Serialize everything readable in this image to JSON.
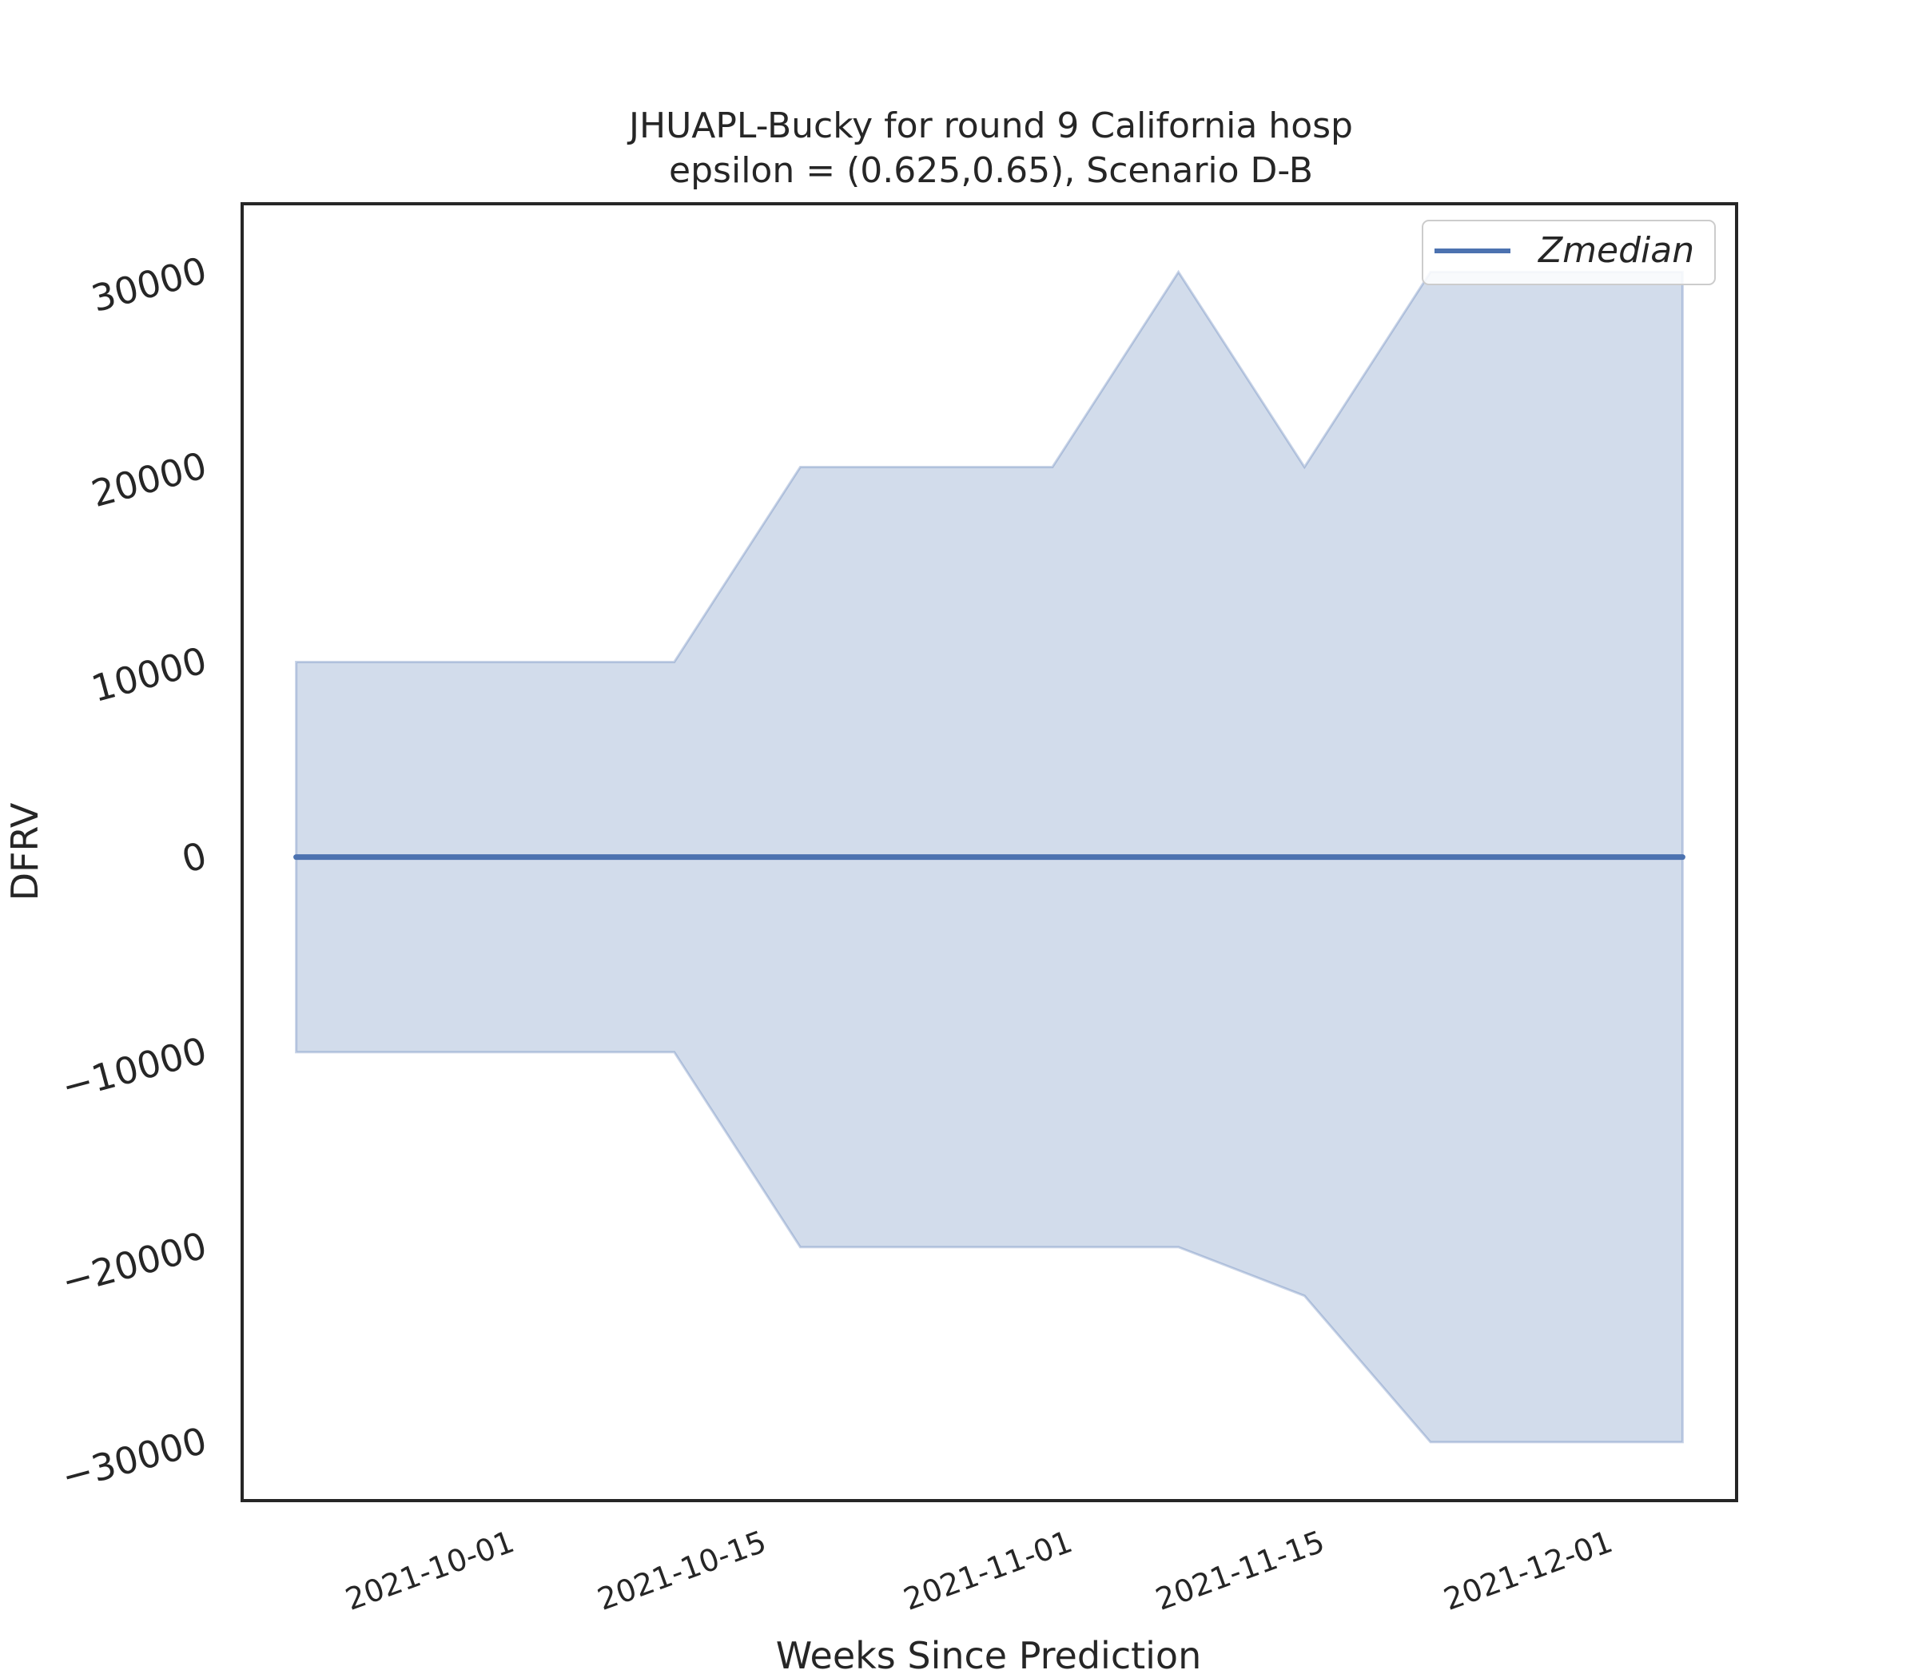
{
  "chart_data": {
    "type": "area",
    "title": "JHUAPL-Bucky for round 9 California  hosp",
    "subtitle": "epsilon = (0.625,0.65), Scenario D-B",
    "xlabel": "Weeks Since Prediction",
    "ylabel": "DFRV",
    "x": [
      "2021-09-19",
      "2021-09-26",
      "2021-10-03",
      "2021-10-10",
      "2021-10-17",
      "2021-10-24",
      "2021-10-31",
      "2021-11-07",
      "2021-11-14",
      "2021-11-21",
      "2021-11-28",
      "2021-12-05"
    ],
    "series": [
      {
        "name": "Zmedian",
        "type": "line",
        "color": "#4c72b0",
        "values": [
          0,
          0,
          0,
          0,
          0,
          0,
          0,
          0,
          0,
          0,
          0,
          0
        ]
      }
    ],
    "band": {
      "color": "#4c72b0",
      "lower": [
        -10000,
        -10000,
        -10000,
        -10000,
        -20000,
        -20000,
        -20000,
        -20000,
        -22500,
        -30000,
        -30000,
        -30000
      ],
      "upper": [
        10000,
        10000,
        10000,
        10000,
        20000,
        20000,
        20000,
        30000,
        20000,
        30000,
        30000,
        30000
      ]
    },
    "xlim": [
      "2021-09-16",
      "2021-12-08"
    ],
    "ylim": [
      -33000,
      33500
    ],
    "yticks": [
      -30000,
      -20000,
      -10000,
      0,
      10000,
      20000,
      30000
    ],
    "ytick_labels": [
      "−30000",
      "−20000",
      "−10000",
      "0",
      "10000",
      "20000",
      "30000"
    ],
    "xticks": [
      "2021-10-01",
      "2021-10-15",
      "2021-11-01",
      "2021-11-15",
      "2021-12-01"
    ],
    "grid": false,
    "legend": {
      "position": "top-right",
      "entries": [
        "Zmedian"
      ]
    }
  }
}
